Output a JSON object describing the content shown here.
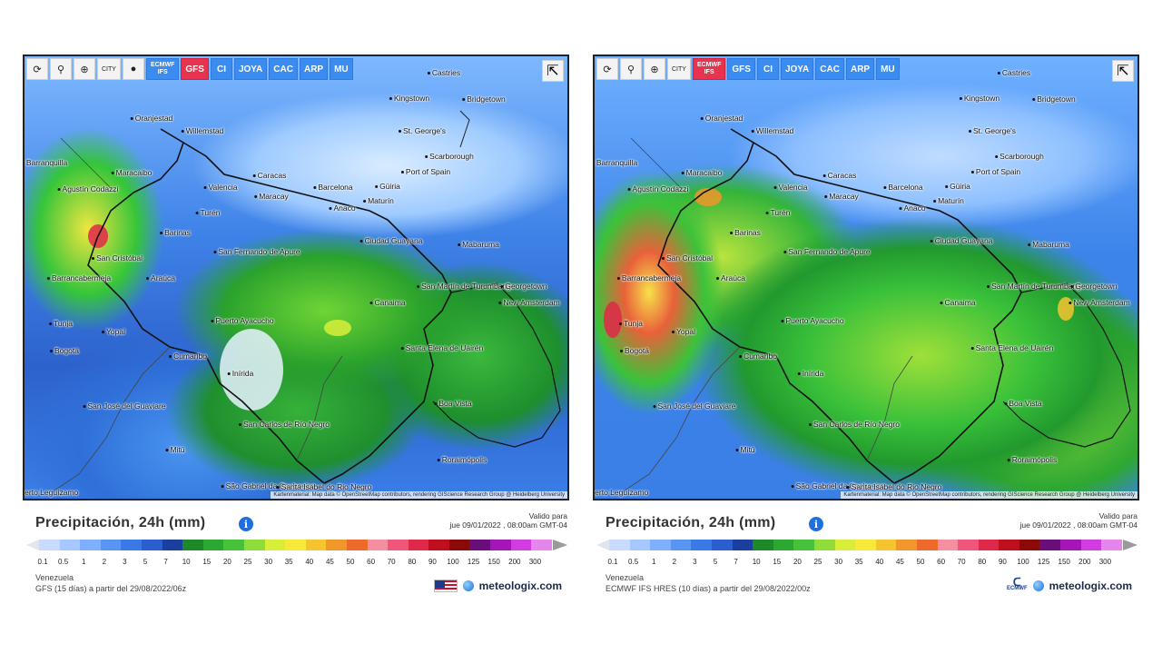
{
  "legend_colors": [
    "#c9dcff",
    "#a7c8ff",
    "#7fb0ff",
    "#5995f5",
    "#3b7ae6",
    "#2b5fd0",
    "#1a3f9e",
    "#1d8a2a",
    "#2aa832",
    "#46c23a",
    "#8fdc3a",
    "#d8ef3a",
    "#f7e93a",
    "#f6c42e",
    "#f0962a",
    "#ee6a2a",
    "#f58fa0",
    "#f0557a",
    "#e0284a",
    "#c01020",
    "#8a0a0a",
    "#6a0f7a",
    "#a416b8",
    "#d23ce0",
    "#e486ec",
    "#f0c4f2",
    "#f0e4f0",
    "#cfcfcf",
    "#b9b9b9"
  ],
  "legend_values": [
    "0.1",
    "0.5",
    "1",
    "2",
    "3",
    "5",
    "7",
    "10",
    "15",
    "20",
    "25",
    "30",
    "35",
    "40",
    "45",
    "50",
    "60",
    "70",
    "80",
    "90",
    "100",
    "125",
    "150",
    "200",
    "300"
  ],
  "left": {
    "toolbar": {
      "refresh_icon": "refresh-icon",
      "pin_icon": "location-pin-icon",
      "zoom_icon": "zoom-icon",
      "city_label": "CITY",
      "dot_icon": "black-dot-icon",
      "ecmwf_top": "ECMWF",
      "ecmwf_bottom": "IFS",
      "models": [
        "GFS",
        "CI",
        "JOYA",
        "CAC",
        "ARP",
        "MU"
      ],
      "active_model": "GFS"
    },
    "title": "Precipitación, 24h (mm)",
    "valid_label": "Valido para",
    "valid_date": "jue 09/01/2022 , 08:00am GMT-04",
    "region": "Venezuela",
    "model_run": "GFS (15 días) a partir del 29/08/2022/06z",
    "brand": "meteologix.com",
    "attribution": "Kartenmaterial: Map data © OpenStreetMap contributors, rendering GIScience Research Group @ Heidelberg University"
  },
  "right": {
    "toolbar": {
      "refresh_icon": "refresh-icon",
      "pin_icon": "location-pin-icon",
      "zoom_icon": "zoom-icon",
      "city_label": "CITY",
      "ecmwf_top": "ECMWF",
      "ecmwf_bottom": "IFS",
      "models": [
        "GFS",
        "CI",
        "JOYA",
        "CAC",
        "ARP",
        "MU"
      ],
      "active_model": "ECMWF IFS"
    },
    "title": "Precipitación, 24h (mm)",
    "valid_label": "Valido para",
    "valid_date": "jue 09/01/2022 , 08:00am GMT-04",
    "region": "Venezuela",
    "model_run": "ECMWF IFS HRES (10 días) a partir del 29/08/2022/00z",
    "brand": "meteologix.com",
    "ecmwf_logo": "ECMWF",
    "attribution": "Kartenmaterial: Map data © OpenStreetMap contributors, rendering GIScience Research Group @ Heidelberg University"
  },
  "cities": [
    {
      "name": "Castries"
    },
    {
      "name": "Kingstown"
    },
    {
      "name": "Bridgetown"
    },
    {
      "name": "Oranjestad"
    },
    {
      "name": "Willemstad"
    },
    {
      "name": "St. George's"
    },
    {
      "name": "Scarborough"
    },
    {
      "name": "Barranquilla"
    },
    {
      "name": "Maracaibo"
    },
    {
      "name": "Port of Spain"
    },
    {
      "name": "Agustín Codazzi"
    },
    {
      "name": "Caracas"
    },
    {
      "name": "Valencia"
    },
    {
      "name": "Maracay"
    },
    {
      "name": "Barcelona"
    },
    {
      "name": "Güiria"
    },
    {
      "name": "Maturín"
    },
    {
      "name": "Anaco"
    },
    {
      "name": "Turén"
    },
    {
      "name": "Barinas"
    },
    {
      "name": "Ciudad Guayana"
    },
    {
      "name": "Mabaruma"
    },
    {
      "name": "San Cristóbal"
    },
    {
      "name": "San Fernando de Apure"
    },
    {
      "name": "Araúca"
    },
    {
      "name": "Barrancabermeja"
    },
    {
      "name": "San Martín de Turumbang"
    },
    {
      "name": "Georgetown"
    },
    {
      "name": "New Amsterdam"
    },
    {
      "name": "Canaima"
    },
    {
      "name": "Tunja"
    },
    {
      "name": "Yopal"
    },
    {
      "name": "Puerto Ayacucho"
    },
    {
      "name": "Bogotá"
    },
    {
      "name": "Cumaribo"
    },
    {
      "name": "Santa Elena de Uairén"
    },
    {
      "name": "Inírida"
    },
    {
      "name": "San José del Guaviare"
    },
    {
      "name": "Boa Vista"
    },
    {
      "name": "San Carlos de Río Negro"
    },
    {
      "name": "Mitú"
    },
    {
      "name": "Roraimópolis"
    },
    {
      "name": "São Gabriel da Cachoeira"
    },
    {
      "name": "Santa Isabel do Rio Negro"
    },
    {
      "name": "Puerto Leguízamo"
    }
  ]
}
